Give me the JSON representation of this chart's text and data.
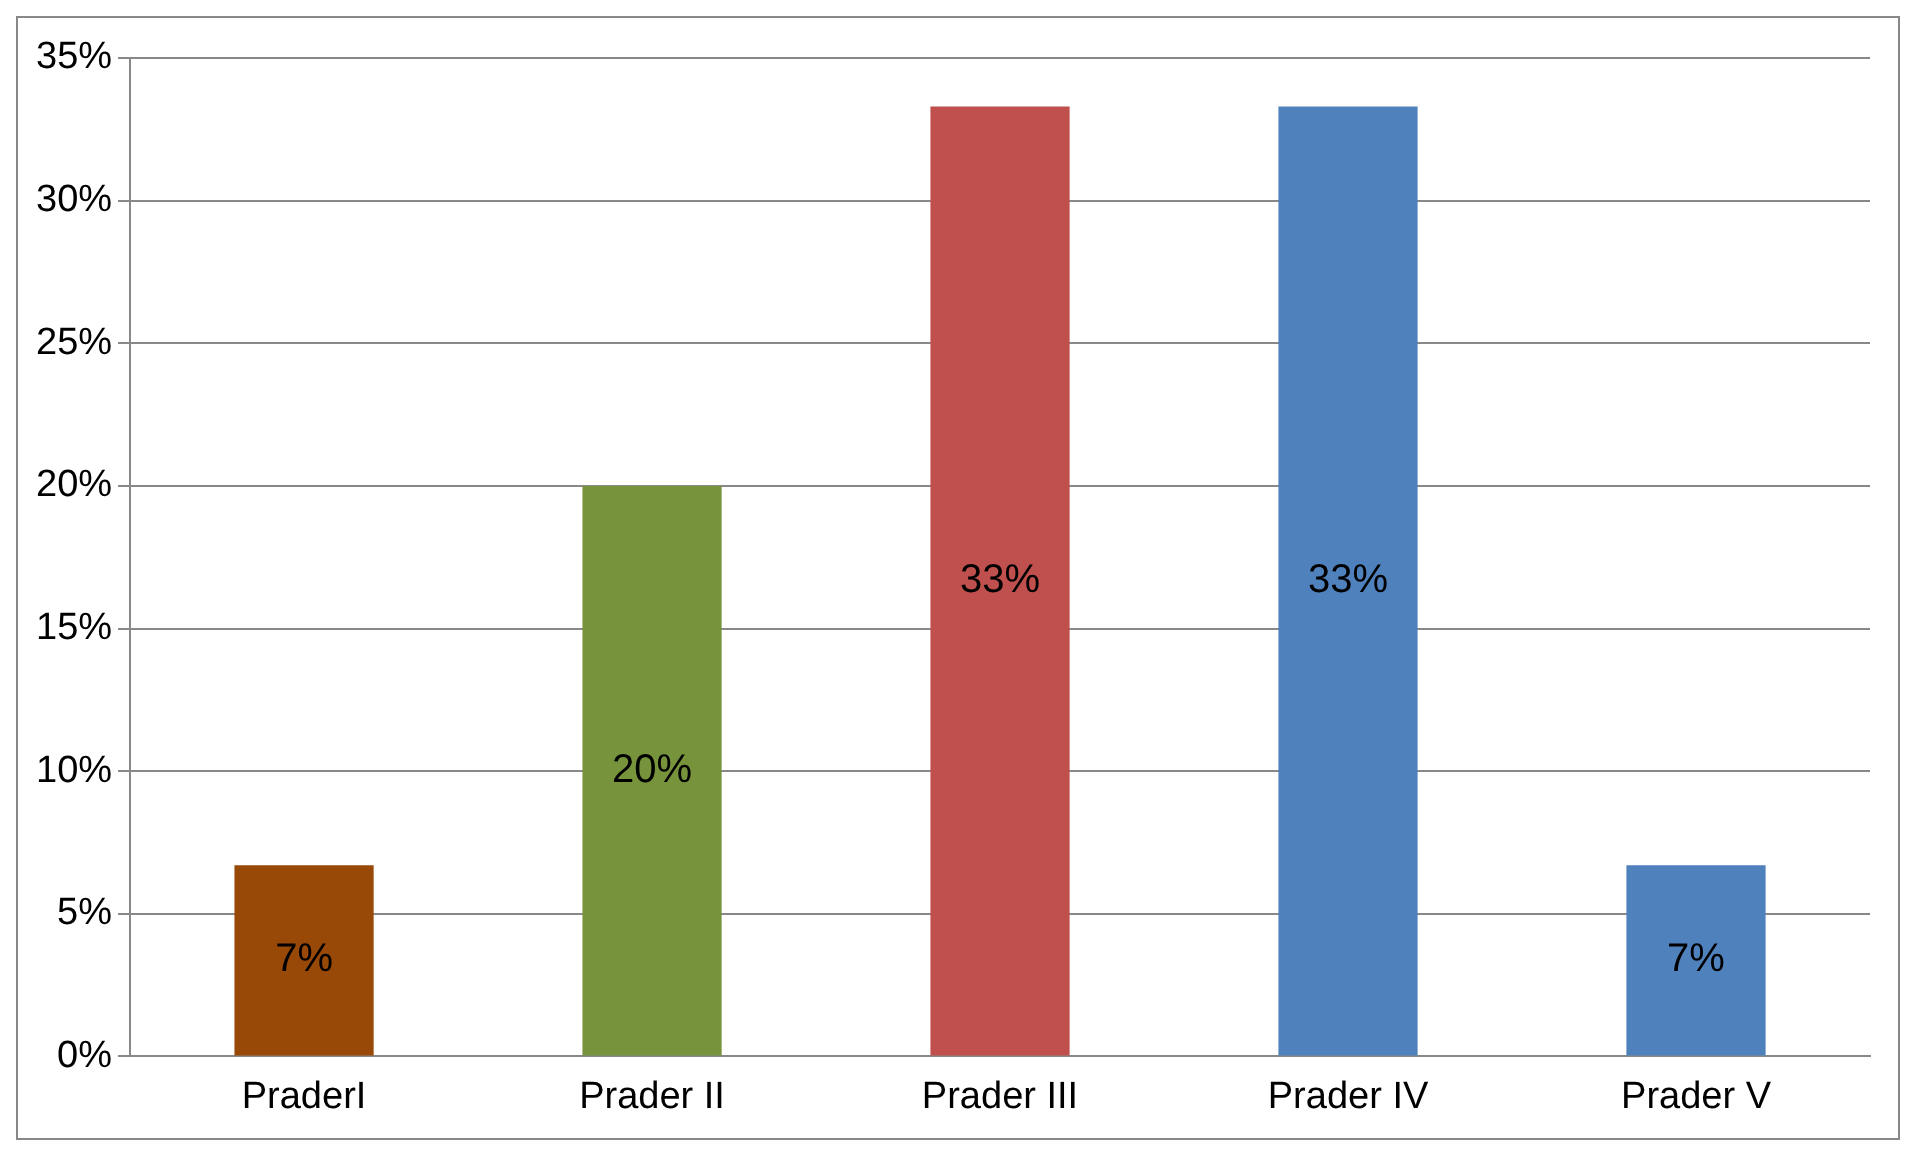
{
  "chart_data": {
    "type": "bar",
    "categories": [
      "PraderI",
      "Prader II",
      "Prader III",
      "Prader IV",
      "Prader V"
    ],
    "values": [
      6.7,
      20,
      33.3,
      33.3,
      6.7
    ],
    "colors": [
      "#984807",
      "#77933c",
      "#c0504d",
      "#4f81bd",
      "#4f81bd"
    ],
    "value_labels": [
      "7%",
      "20%",
      "33%",
      "33%",
      "7%"
    ],
    "ylim": [
      0,
      35
    ],
    "yticks": [
      {
        "value": 0,
        "label": "0%"
      },
      {
        "value": 5,
        "label": "5%"
      },
      {
        "value": 10,
        "label": "10%"
      },
      {
        "value": 15,
        "label": "15%"
      },
      {
        "value": 20,
        "label": "20%"
      },
      {
        "value": 25,
        "label": "25%"
      },
      {
        "value": 30,
        "label": "30%"
      },
      {
        "value": 35,
        "label": "35%"
      }
    ],
    "grid": "y",
    "legend": false
  }
}
